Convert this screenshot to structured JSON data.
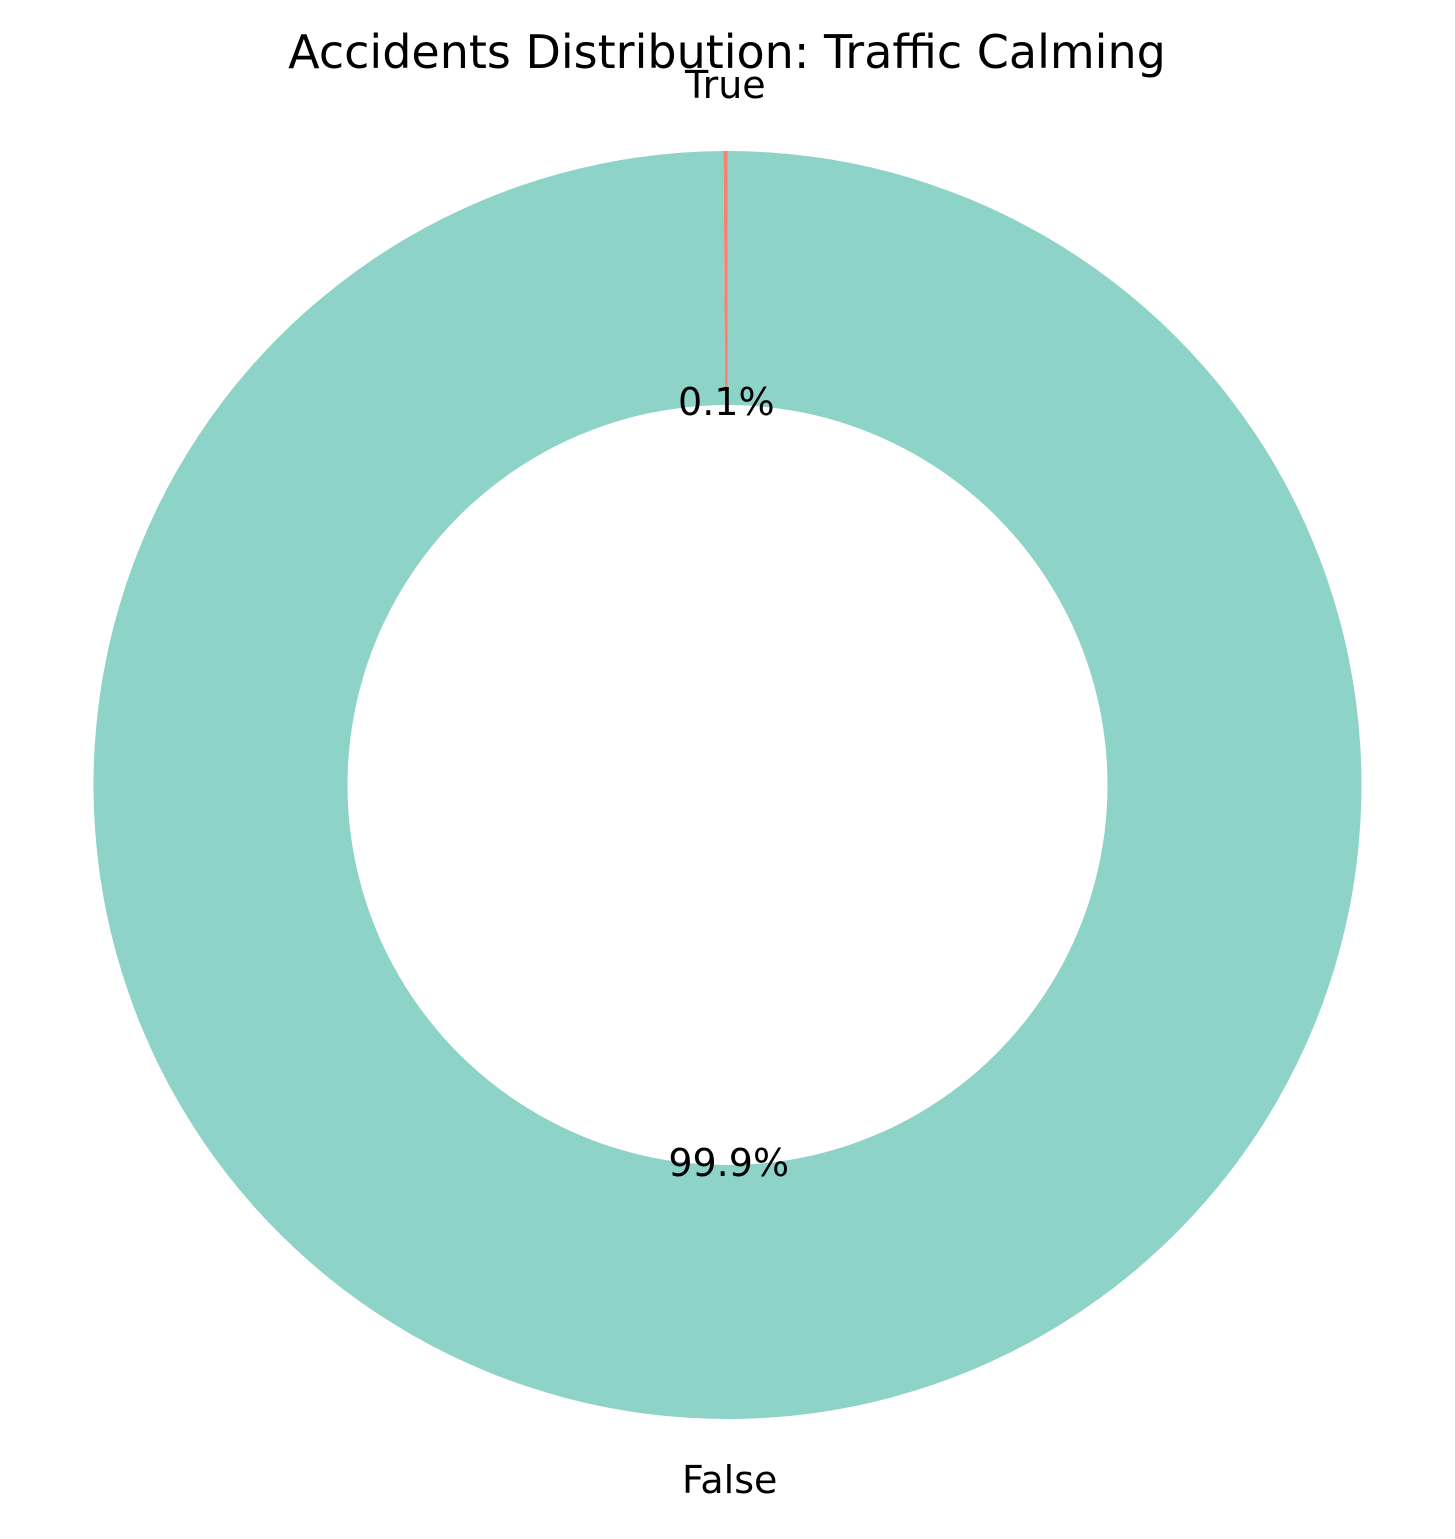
{
  "chart_data": {
    "type": "pie",
    "title": "Accidents Distribution: Traffic Calming",
    "donut": true,
    "categories": [
      "True",
      "False"
    ],
    "values": [
      0.1,
      99.9
    ],
    "value_labels": [
      "0.1%",
      "99.9%"
    ],
    "colors": [
      "#fb8072",
      "#8dd3c7"
    ],
    "start_angle_deg": 90,
    "direction": "counterclockwise",
    "legend": false
  }
}
